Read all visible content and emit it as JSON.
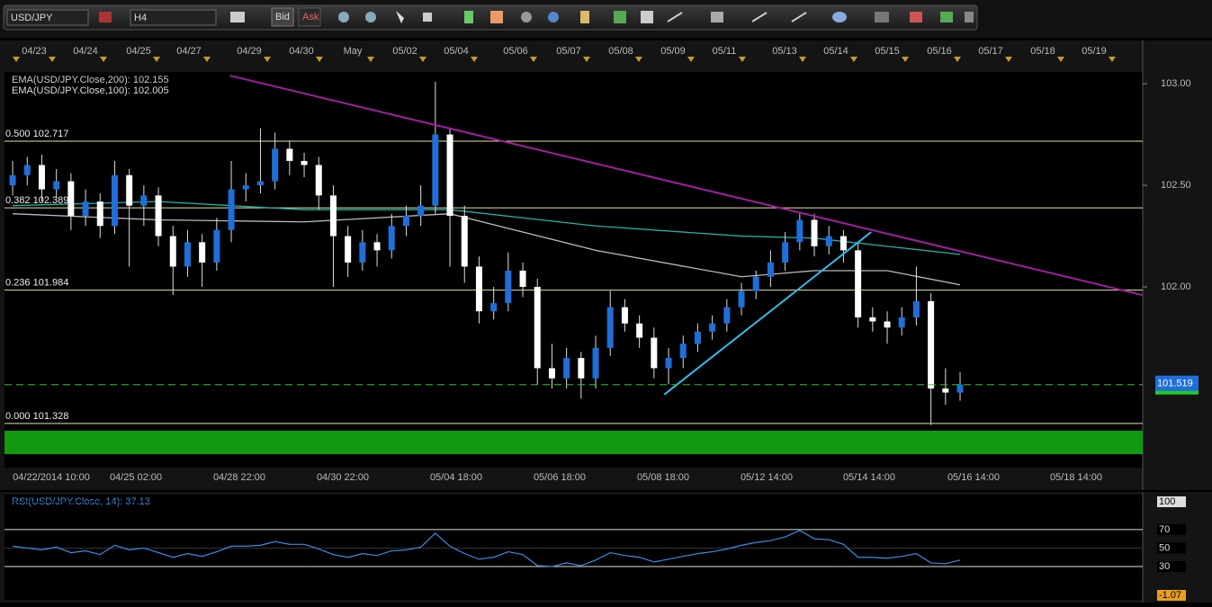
{
  "toolbar": {
    "symbol": "USD/JPY",
    "timeframe": "H4",
    "bid": "Bid",
    "ask": "Ask"
  },
  "chart_data": {
    "type": "candlestick",
    "top_dates": [
      "04/23",
      "04/24",
      "04/25",
      "04/27",
      "04/29",
      "04/30",
      "May",
      "05/02",
      "05/04",
      "05/06",
      "05/07",
      "05/08",
      "05/09",
      "05/11",
      "05/13",
      "05/14",
      "05/15",
      "05/16",
      "05/17",
      "05/18",
      "05/19"
    ],
    "bottom_times": [
      "04/22/2014 10:00",
      "04/25 02:00",
      "04/28 22:00",
      "04/30 22:00",
      "05/04 18:00",
      "05/06 18:00",
      "05/08 18:00",
      "05/12 14:00",
      "05/14 14:00",
      "05/16 14:00",
      "05/18 14:00"
    ],
    "xlim": [
      -0.56,
      77.53
    ],
    "ylim": [
      101.177,
      103.058
    ],
    "yticks": [
      {
        "value": 103,
        "label": "103.00"
      },
      {
        "value": 102.5,
        "label": "102.50"
      },
      {
        "value": 102,
        "label": "102.00"
      }
    ],
    "up_color": "#1e6fd9",
    "down_color": "#ffffff",
    "candles": [
      [
        102.5,
        102.62,
        102.45,
        102.55
      ],
      [
        102.55,
        102.64,
        102.5,
        102.6
      ],
      [
        102.6,
        102.65,
        102.42,
        102.48
      ],
      [
        102.48,
        102.58,
        102.44,
        102.52
      ],
      [
        102.52,
        102.56,
        102.28,
        102.35
      ],
      [
        102.35,
        102.48,
        102.3,
        102.42
      ],
      [
        102.42,
        102.46,
        102.24,
        102.3
      ],
      [
        102.3,
        102.62,
        102.26,
        102.55
      ],
      [
        102.55,
        102.58,
        102.1,
        102.4
      ],
      [
        102.4,
        102.5,
        102.3,
        102.45
      ],
      [
        102.45,
        102.49,
        102.2,
        102.25
      ],
      [
        102.25,
        102.3,
        101.96,
        102.1
      ],
      [
        102.1,
        102.28,
        102.05,
        102.22
      ],
      [
        102.22,
        102.26,
        102.0,
        102.12
      ],
      [
        102.12,
        102.34,
        102.08,
        102.28
      ],
      [
        102.28,
        102.62,
        102.22,
        102.48
      ],
      [
        102.48,
        102.56,
        102.42,
        102.5
      ],
      [
        102.5,
        102.78,
        102.46,
        102.52
      ],
      [
        102.52,
        102.76,
        102.48,
        102.68
      ],
      [
        102.68,
        102.72,
        102.55,
        102.62
      ],
      [
        102.62,
        102.66,
        102.54,
        102.6
      ],
      [
        102.6,
        102.64,
        102.38,
        102.45
      ],
      [
        102.45,
        102.5,
        102.0,
        102.25
      ],
      [
        102.25,
        102.3,
        102.05,
        102.12
      ],
      [
        102.12,
        102.28,
        102.08,
        102.22
      ],
      [
        102.22,
        102.26,
        102.1,
        102.18
      ],
      [
        102.18,
        102.36,
        102.14,
        102.3
      ],
      [
        102.3,
        102.4,
        102.25,
        102.35
      ],
      [
        102.35,
        102.5,
        102.3,
        102.4
      ],
      [
        102.4,
        103.01,
        102.36,
        102.75
      ],
      [
        102.75,
        102.78,
        102.1,
        102.35
      ],
      [
        102.35,
        102.4,
        102.02,
        102.1
      ],
      [
        102.1,
        102.15,
        101.82,
        101.88
      ],
      [
        101.88,
        102.0,
        101.84,
        101.92
      ],
      [
        101.92,
        102.17,
        101.88,
        102.08
      ],
      [
        102.08,
        102.12,
        101.95,
        102.0
      ],
      [
        102.0,
        102.04,
        101.52,
        101.6
      ],
      [
        101.6,
        101.72,
        101.5,
        101.55
      ],
      [
        101.55,
        101.7,
        101.5,
        101.65
      ],
      [
        101.65,
        101.68,
        101.45,
        101.55
      ],
      [
        101.55,
        101.76,
        101.5,
        101.7
      ],
      [
        101.7,
        101.98,
        101.66,
        101.9
      ],
      [
        101.9,
        101.94,
        101.78,
        101.82
      ],
      [
        101.82,
        101.86,
        101.7,
        101.75
      ],
      [
        101.75,
        101.8,
        101.55,
        101.6
      ],
      [
        101.6,
        101.7,
        101.52,
        101.65
      ],
      [
        101.65,
        101.76,
        101.6,
        101.72
      ],
      [
        101.72,
        101.82,
        101.68,
        101.78
      ],
      [
        101.78,
        101.86,
        101.74,
        101.82
      ],
      [
        101.82,
        101.94,
        101.78,
        101.9
      ],
      [
        101.9,
        102.02,
        101.86,
        101.98
      ],
      [
        101.98,
        102.08,
        101.94,
        102.05
      ],
      [
        102.05,
        102.18,
        102.0,
        102.12
      ],
      [
        102.12,
        102.27,
        102.08,
        102.22
      ],
      [
        102.22,
        102.36,
        102.18,
        102.33
      ],
      [
        102.33,
        102.36,
        102.15,
        102.2
      ],
      [
        102.2,
        102.3,
        102.16,
        102.25
      ],
      [
        102.25,
        102.28,
        102.12,
        102.18
      ],
      [
        102.18,
        102.22,
        101.8,
        101.85
      ],
      [
        101.85,
        101.9,
        101.78,
        101.83
      ],
      [
        101.83,
        101.88,
        101.72,
        101.8
      ],
      [
        101.8,
        101.9,
        101.76,
        101.85
      ],
      [
        101.85,
        102.1,
        101.81,
        101.93
      ],
      [
        101.93,
        101.97,
        101.32,
        101.5
      ],
      [
        101.5,
        101.6,
        101.42,
        101.48
      ],
      [
        101.48,
        101.58,
        101.44,
        101.52
      ]
    ],
    "series": [
      {
        "name": "EMA(USD/JPY.Close,200): 102.155",
        "color": "#20b2aa",
        "x": [
          0,
          10,
          20,
          30,
          40,
          50,
          55,
          60,
          65
        ],
        "values": [
          102.4,
          102.42,
          102.38,
          102.38,
          102.3,
          102.25,
          102.24,
          102.2,
          102.16
        ]
      },
      {
        "name": "EMA(USD/JPY.Close,100): 102.005",
        "color": "#bbbbbb",
        "x": [
          0,
          10,
          20,
          30,
          40,
          50,
          55,
          60,
          65
        ],
        "values": [
          102.36,
          102.33,
          102.32,
          102.36,
          102.18,
          102.05,
          102.08,
          102.08,
          102.01
        ]
      }
    ],
    "trendlines": [
      {
        "color": "#a020a0",
        "x": [
          14.9,
          77.5
        ],
        "values": [
          103.04,
          101.96
        ]
      },
      {
        "color": "#33bbee",
        "x": [
          44.7,
          58.9
        ],
        "values": [
          101.47,
          102.27
        ]
      }
    ],
    "fib_levels": [
      {
        "value": 102.717,
        "label": "0.500 102.717"
      },
      {
        "value": 102.389,
        "label": "0.382 102.389"
      },
      {
        "value": 101.984,
        "label": "0.236 101.984"
      },
      {
        "value": 101.328,
        "label": "0.000 101.328"
      }
    ],
    "fib_color": "#e8e0a0",
    "zone": [
      101.177,
      101.31
    ],
    "zone_color": "#119911",
    "current_price": {
      "value": 101.519,
      "label": "101.519"
    },
    "current_color": "#22cc22",
    "rsi": {
      "title": "RSI(USD/JPY.Close, 14): 37.13",
      "color": "#3a8ee6",
      "ylim": [
        {
          "value": -1.07,
          "label": "-1.07"
        },
        100
      ],
      "yticks": [
        100,
        70,
        50,
        30
      ],
      "values": [
        52,
        50,
        48,
        51,
        45,
        47,
        43,
        53,
        48,
        50,
        45,
        40,
        44,
        41,
        46,
        52,
        52,
        53,
        57,
        54,
        54,
        49,
        43,
        40,
        44,
        42,
        47,
        48,
        51,
        66,
        52,
        44,
        38,
        40,
        46,
        43,
        31,
        30,
        34,
        31,
        37,
        45,
        42,
        40,
        35,
        38,
        41,
        44,
        46,
        49,
        53,
        56,
        58,
        62,
        69,
        60,
        59,
        54,
        40,
        40,
        39,
        41,
        44,
        34,
        33,
        37
      ]
    }
  }
}
